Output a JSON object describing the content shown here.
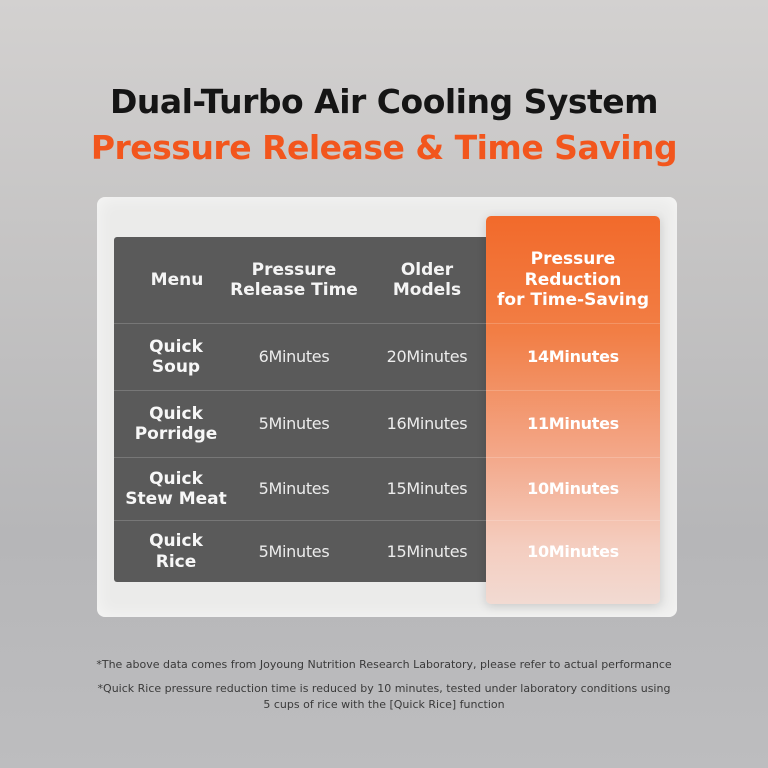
{
  "headline": {
    "line1": "Dual-Turbo Air Cooling System",
    "line2": "Pressure Release & Time Saving"
  },
  "table": {
    "headers": {
      "menu": "Menu",
      "release_1": "Pressure",
      "release_2": "Release Time",
      "older_1": "Older",
      "older_2": "Models",
      "saving_1": "Pressure",
      "saving_2": "Reduction",
      "saving_3": "for Time-Saving"
    },
    "rows": [
      {
        "menu_1": "Quick",
        "menu_2": "Soup",
        "release": "6Minutes",
        "older": "20Minutes",
        "saving": "14Minutes"
      },
      {
        "menu_1": "Quick",
        "menu_2": "Porridge",
        "release": "5Minutes",
        "older": "16Minutes",
        "saving": "11Minutes"
      },
      {
        "menu_1": "Quick",
        "menu_2": "Stew Meat",
        "release": "5Minutes",
        "older": "15Minutes",
        "saving": "10Minutes"
      },
      {
        "menu_1": "Quick",
        "menu_2": "Rice",
        "release": "5Minutes",
        "older": "15Minutes",
        "saving": "10Minutes"
      }
    ]
  },
  "footnotes": {
    "note1": "*The above data comes from Joyoung Nutrition Research Laboratory, please refer to actual performance",
    "note2_line1": "*Quick Rice pressure reduction time is reduced by 10 minutes, tested under  laboratory conditions using",
    "note2_line2": "5 cups of rice with the [Quick Rice] function"
  },
  "colors": {
    "accent": "#f2561d",
    "table_bg": "#5a5a5a",
    "panel_bg": "#ebebea"
  }
}
